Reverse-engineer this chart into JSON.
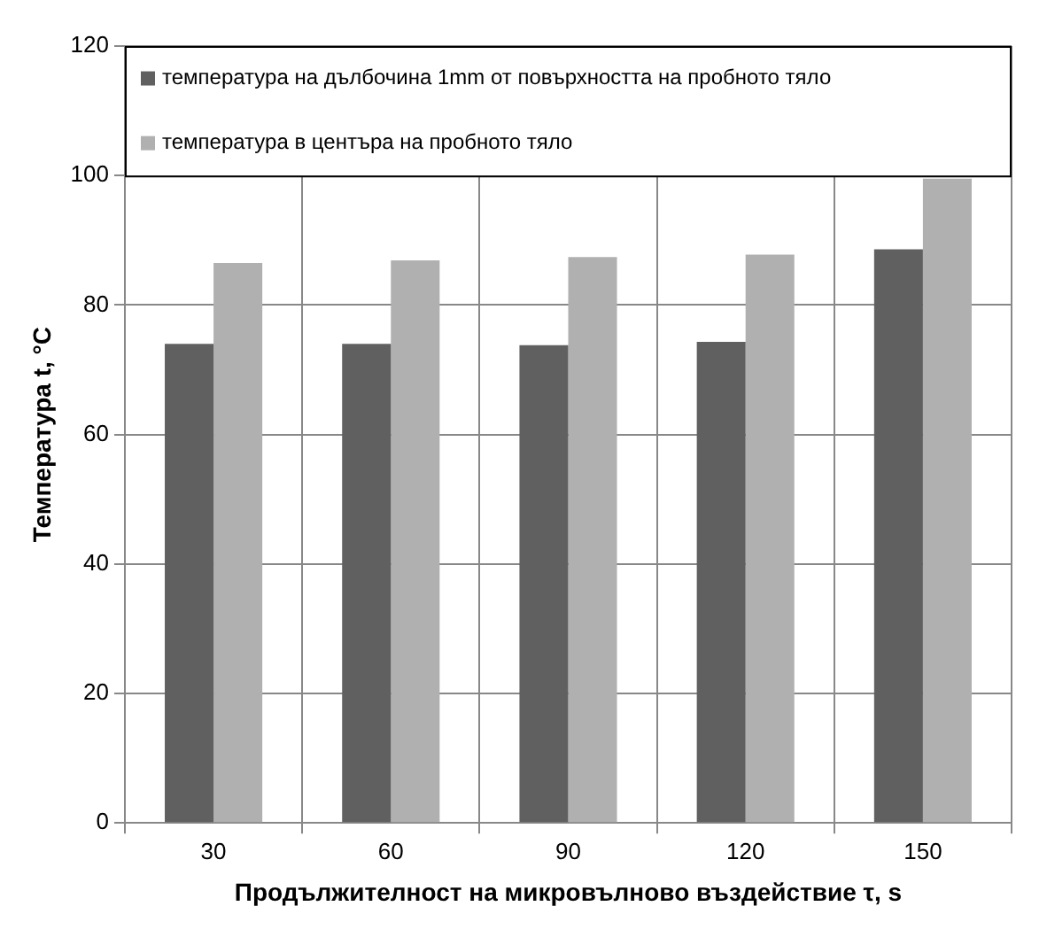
{
  "chart_data": {
    "type": "bar",
    "categories": [
      "30",
      "60",
      "90",
      "120",
      "150"
    ],
    "series": [
      {
        "name": "температура на дълбочина 1mm от повърхността на пробното тяло",
        "color": "#606060",
        "values": [
          74.0,
          74.0,
          73.8,
          74.3,
          88.6
        ]
      },
      {
        "name": "температура в центъра на пробното тяло",
        "color": "#b0b0b0",
        "values": [
          86.5,
          86.9,
          87.4,
          87.8,
          99.5
        ]
      }
    ],
    "xlabel": "Продължителност на микровълново въздействие τ, s",
    "ylabel": "Температура t, °C",
    "ylim": [
      0,
      120
    ],
    "yticks": [
      0,
      20,
      40,
      60,
      80,
      100,
      120
    ],
    "grid": true,
    "legend": "top"
  }
}
